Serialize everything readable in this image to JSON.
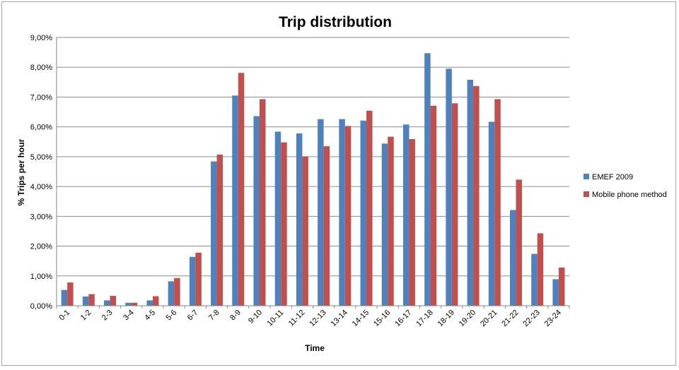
{
  "chart_data": {
    "type": "bar",
    "title": "Trip distribution",
    "xlabel": "Time",
    "ylabel": "% Trips per hour",
    "ylim": [
      0,
      9
    ],
    "ytick_step": 1,
    "ytick_labels": [
      "0,00%",
      "1,00%",
      "2,00%",
      "3,00%",
      "4,00%",
      "5,00%",
      "6,00%",
      "7,00%",
      "8,00%",
      "9,00%"
    ],
    "grid": true,
    "legend_position": "right",
    "categories": [
      "0-1",
      "1-2",
      "2-3",
      "3-4",
      "4-5",
      "5-6",
      "6-7",
      "7-8",
      "8-9",
      "9-10",
      "10-11",
      "11-12",
      "12-13",
      "13-14",
      "14-15",
      "15-16",
      "16-17",
      "17-18",
      "18-19",
      "19-20",
      "20-21",
      "21-22",
      "22-23",
      "23-24"
    ],
    "series": [
      {
        "name": "EMEF 2009",
        "color": "#4f81bd",
        "values": [
          0.53,
          0.31,
          0.18,
          0.1,
          0.18,
          0.82,
          1.64,
          4.84,
          7.05,
          6.36,
          5.84,
          5.78,
          6.26,
          6.26,
          6.21,
          5.44,
          6.08,
          8.47,
          7.95,
          7.58,
          6.17,
          3.21,
          1.74,
          0.89
        ]
      },
      {
        "name": "Mobile phone method",
        "color": "#c0504d",
        "values": [
          0.78,
          0.39,
          0.33,
          0.1,
          0.32,
          0.93,
          1.78,
          5.07,
          7.81,
          6.93,
          5.48,
          5.01,
          5.35,
          6.03,
          6.54,
          5.67,
          5.59,
          6.71,
          6.79,
          7.37,
          6.93,
          4.23,
          2.43,
          1.28
        ]
      }
    ]
  }
}
